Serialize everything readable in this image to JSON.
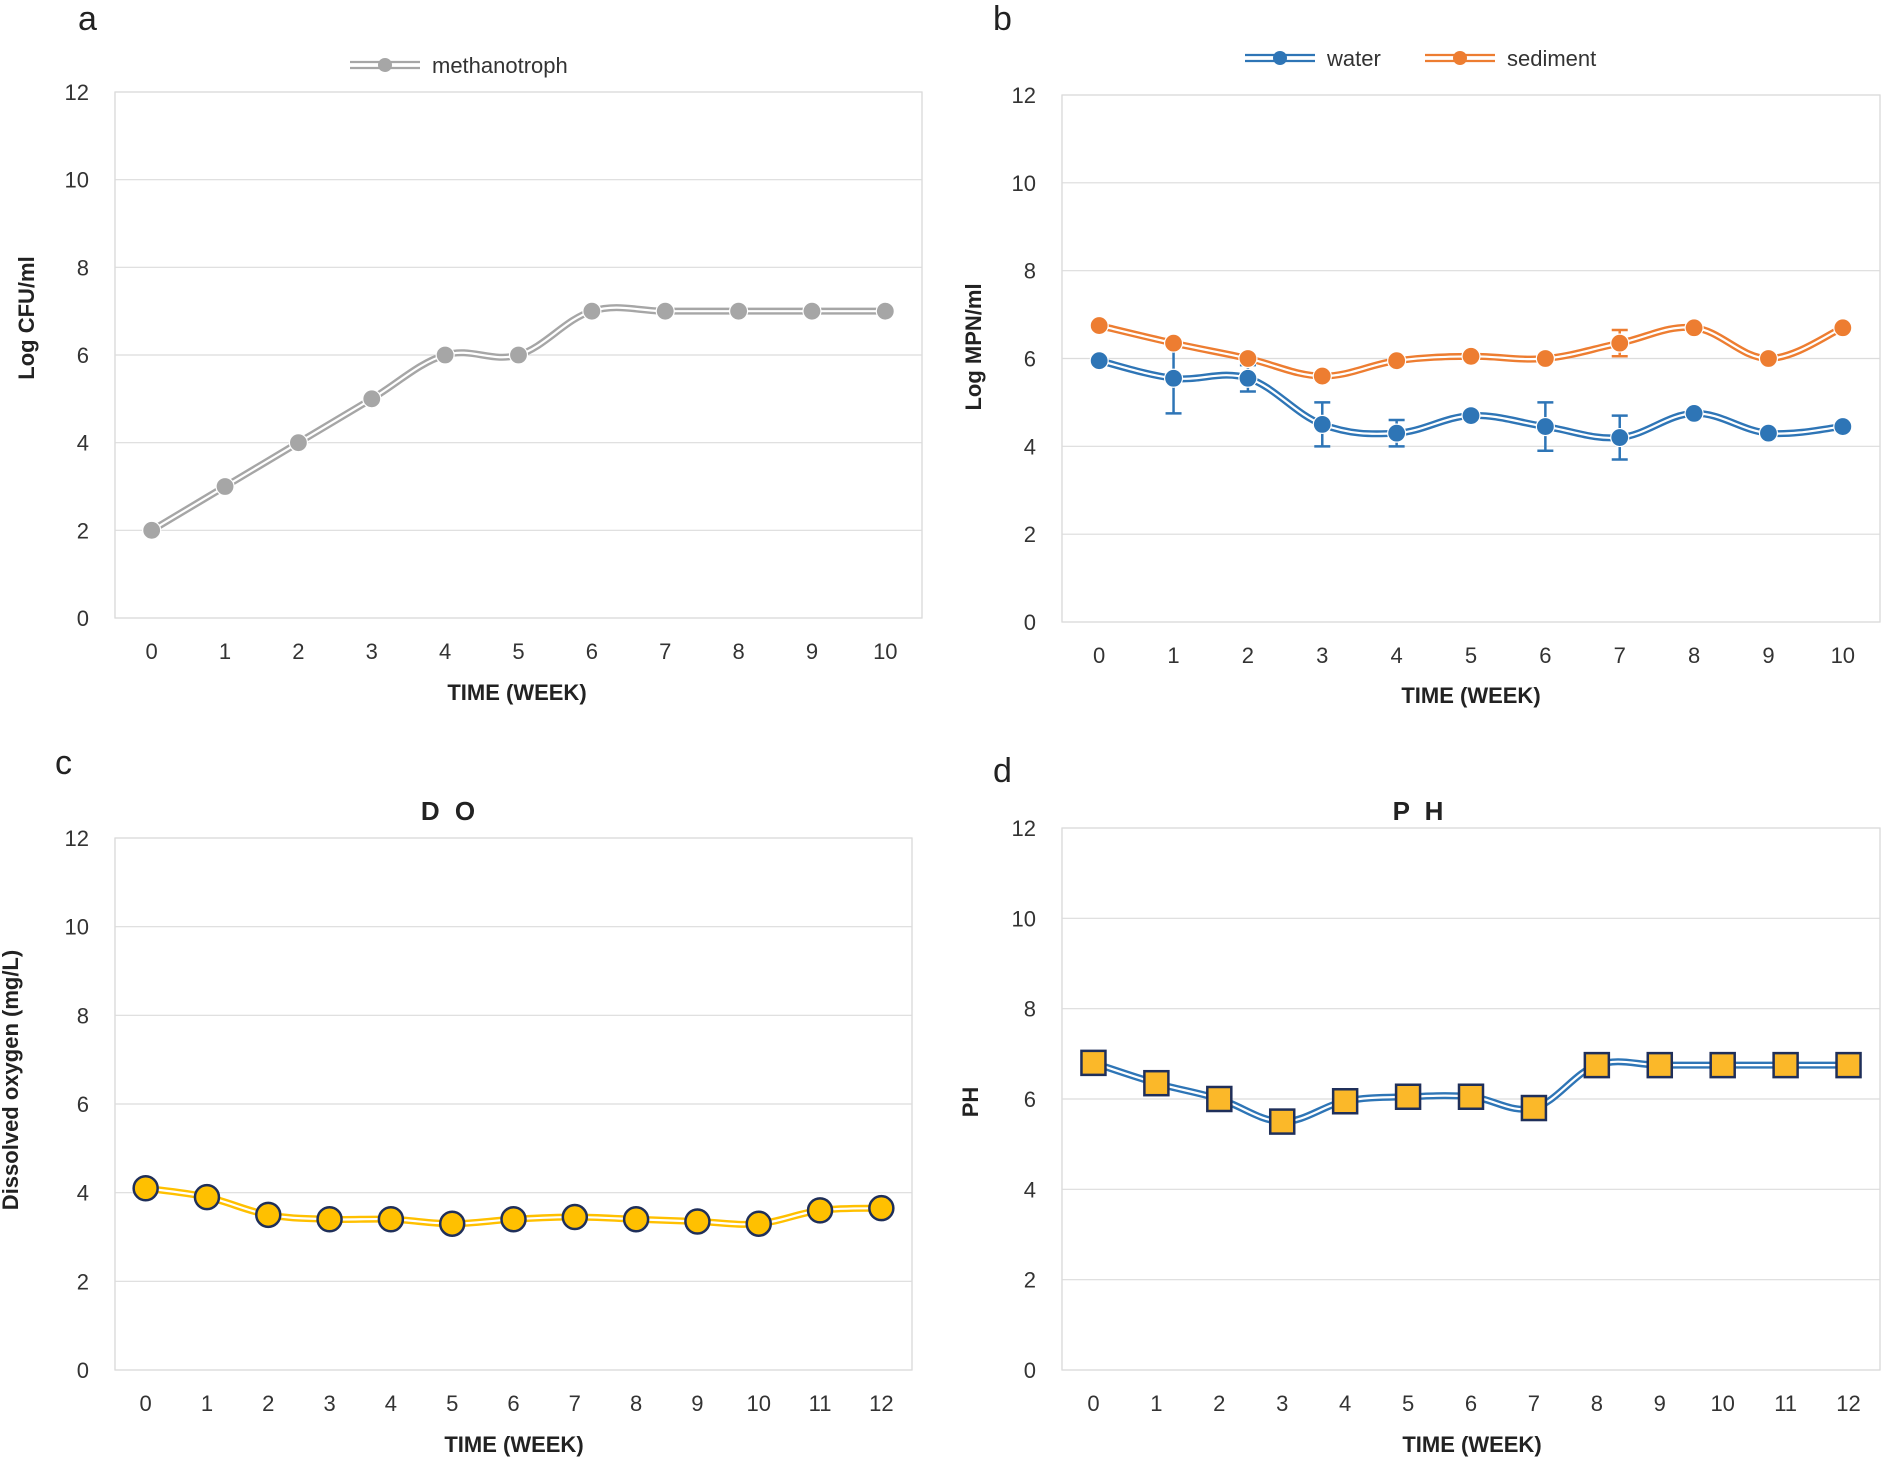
{
  "chart_data": [
    {
      "id": "a",
      "panel_label": "a",
      "type": "line",
      "title": "",
      "xlabel": "TIME (WEEK)",
      "ylabel": "Log CFU/ml",
      "ylim": [
        0,
        12
      ],
      "yticks": [
        "0",
        "2",
        "4",
        "6",
        "8",
        "10",
        "12"
      ],
      "categories": [
        "0",
        "1",
        "2",
        "3",
        "4",
        "5",
        "6",
        "7",
        "8",
        "9",
        "10"
      ],
      "legend_position": "top",
      "series": [
        {
          "name": "methanotroph",
          "color": "#a6a6a6",
          "edge": "#a6a6a6",
          "marker": "circle",
          "values": [
            2,
            3,
            4,
            5,
            6,
            6,
            7,
            7,
            7,
            7,
            7
          ]
        }
      ]
    },
    {
      "id": "b",
      "panel_label": "b",
      "type": "line",
      "title": "",
      "xlabel": "TIME (WEEK)",
      "ylabel": "Log MPN/ml",
      "ylim": [
        0,
        12
      ],
      "yticks": [
        "0",
        "2",
        "4",
        "6",
        "8",
        "10",
        "12"
      ],
      "categories": [
        "0",
        "1",
        "2",
        "3",
        "4",
        "5",
        "6",
        "7",
        "8",
        "9",
        "10"
      ],
      "legend_position": "top",
      "series": [
        {
          "name": "water",
          "color": "#2e75b6",
          "edge": "#2e75b6",
          "marker": "circle",
          "values": [
            5.95,
            5.55,
            5.55,
            4.5,
            4.3,
            4.7,
            4.45,
            4.2,
            4.75,
            4.3,
            4.45
          ],
          "errors": [
            0,
            0.8,
            0.3,
            0.5,
            0.3,
            0,
            0.55,
            0.5,
            0,
            0,
            0
          ]
        },
        {
          "name": "sediment",
          "color": "#ed7d31",
          "edge": "#ed7d31",
          "marker": "circle",
          "values": [
            6.75,
            6.35,
            6.0,
            5.6,
            5.95,
            6.05,
            6.0,
            6.35,
            6.7,
            6.0,
            6.7
          ],
          "errors": [
            0,
            0,
            0,
            0,
            0,
            0,
            0,
            0.3,
            0,
            0,
            0
          ]
        }
      ]
    },
    {
      "id": "c",
      "panel_label": "c",
      "type": "line",
      "title": "D O",
      "xlabel": "TIME (WEEK)",
      "ylabel": "Dissolved oxygen (mg/L)",
      "ylim": [
        0,
        12
      ],
      "yticks": [
        "0",
        "2",
        "4",
        "6",
        "8",
        "10",
        "12"
      ],
      "categories": [
        "0",
        "1",
        "2",
        "3",
        "4",
        "5",
        "6",
        "7",
        "8",
        "9",
        "10",
        "11",
        "12"
      ],
      "legend_position": "none",
      "series": [
        {
          "name": "DO",
          "color": "#ffc000",
          "edge": "#1f2f5a",
          "marker": "circle",
          "values": [
            4.1,
            3.9,
            3.5,
            3.4,
            3.4,
            3.3,
            3.4,
            3.45,
            3.4,
            3.35,
            3.3,
            3.6,
            3.65
          ]
        }
      ]
    },
    {
      "id": "d",
      "panel_label": "d",
      "type": "line",
      "title": "P H",
      "xlabel": "TIME (WEEK)",
      "ylabel": "PH",
      "ylim": [
        0,
        12
      ],
      "yticks": [
        "0",
        "2",
        "4",
        "6",
        "8",
        "10",
        "12"
      ],
      "categories": [
        "0",
        "1",
        "2",
        "3",
        "4",
        "5",
        "6",
        "7",
        "8",
        "9",
        "10",
        "11",
        "12"
      ],
      "legend_position": "none",
      "series": [
        {
          "name": "PH",
          "color": "#2e75b6",
          "edge": "#1f2f5a",
          "fill": "#fbb829",
          "marker": "square",
          "values": [
            6.8,
            6.35,
            6.0,
            5.5,
            5.95,
            6.05,
            6.05,
            5.8,
            6.75,
            6.75,
            6.75,
            6.75,
            6.75
          ]
        }
      ]
    }
  ]
}
